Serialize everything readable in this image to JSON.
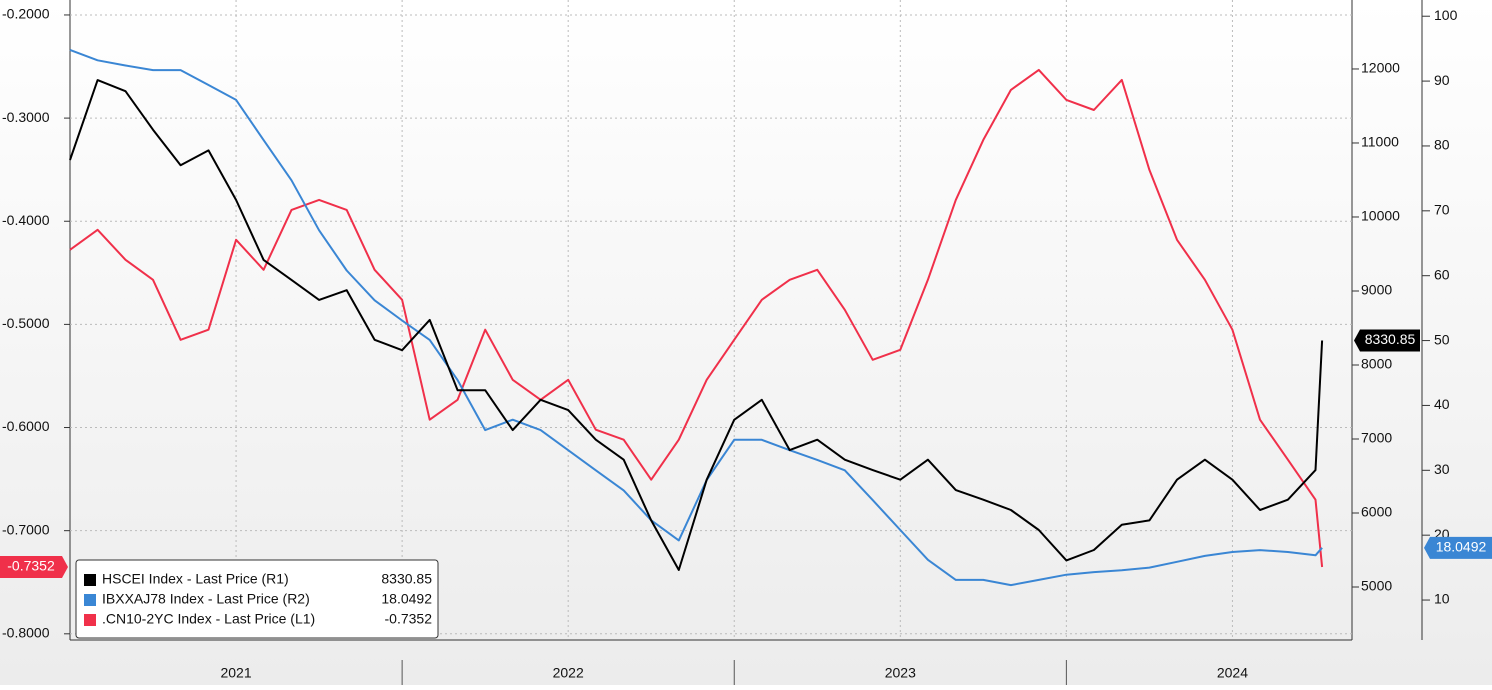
{
  "chart_data": {
    "type": "line",
    "x": [
      2021.0,
      2021.083,
      2021.167,
      2021.25,
      2021.333,
      2021.417,
      2021.5,
      2021.583,
      2021.667,
      2021.75,
      2021.833,
      2021.917,
      2022.0,
      2022.083,
      2022.167,
      2022.25,
      2022.333,
      2022.417,
      2022.5,
      2022.583,
      2022.667,
      2022.75,
      2022.833,
      2022.917,
      2023.0,
      2023.083,
      2023.167,
      2023.25,
      2023.333,
      2023.417,
      2023.5,
      2023.583,
      2023.667,
      2023.75,
      2023.833,
      2023.917,
      2024.0,
      2024.083,
      2024.167,
      2024.25,
      2024.333,
      2024.417,
      2024.5,
      2024.583,
      2024.667,
      2024.75,
      2024.77
    ],
    "xlim": [
      2021.0,
      2024.86
    ],
    "xticks": [
      {
        "value": 2021.5,
        "label": "2021"
      },
      {
        "value": 2022.5,
        "label": "2022"
      },
      {
        "value": 2023.5,
        "label": "2023"
      },
      {
        "value": 2024.5,
        "label": "2024"
      }
    ],
    "ylim": [
      -0.806,
      -0.1855
    ],
    "yticks": [
      {
        "value": -0.2,
        "label": "-0.2000"
      },
      {
        "value": -0.3,
        "label": "-0.3000"
      },
      {
        "value": -0.4,
        "label": "-0.4000"
      },
      {
        "value": -0.5,
        "label": "-0.5000"
      },
      {
        "value": -0.6,
        "label": "-0.6000"
      },
      {
        "value": -0.7,
        "label": "-0.7000"
      },
      {
        "value": -0.8,
        "label": "-0.8000"
      }
    ],
    "y2lim": [
      4284,
      12932
    ],
    "y2ticks": [
      5000,
      6000,
      7000,
      8000,
      9000,
      10000,
      11000,
      12000
    ],
    "y3lim": [
      3.84,
      102.5
    ],
    "y3ticks": [
      10,
      20,
      30,
      40,
      50,
      60,
      70,
      80,
      90,
      100
    ],
    "grid": true,
    "legend": "lower left",
    "series": [
      {
        "name": "HSCEI Index - Last Price (R1)",
        "color": "#000000",
        "axis": "y2",
        "values": [
          10770,
          11850,
          11700,
          11180,
          10700,
          10900,
          10230,
          9420,
          9150,
          8880,
          9010,
          8340,
          8200,
          8610,
          7660,
          7660,
          7120,
          7530,
          7390,
          6990,
          6720,
          5900,
          5230,
          6450,
          7260,
          7530,
          6850,
          6990,
          6720,
          6580,
          6450,
          6720,
          6310,
          6180,
          6040,
          5770,
          5360,
          5500,
          5840,
          5900,
          6450,
          6720,
          6450,
          6040,
          6180,
          6580,
          8330.85
        ]
      },
      {
        "name": "IBXXAJ78 Index - Last Price (R2)",
        "color": "#3a86d4",
        "axis": "y3",
        "values": [
          94.8,
          93.2,
          92.4,
          91.7,
          91.7,
          89.4,
          87.1,
          80.9,
          74.7,
          67.0,
          60.8,
          56.2,
          53.1,
          50.1,
          43.9,
          36.2,
          37.8,
          36.2,
          33.1,
          30.0,
          26.9,
          22.3,
          19.2,
          28.5,
          34.7,
          34.7,
          33.1,
          31.6,
          30.0,
          25.4,
          20.8,
          16.2,
          13.1,
          13.1,
          12.3,
          13.1,
          13.9,
          14.3,
          14.6,
          15.0,
          15.9,
          16.8,
          17.4,
          17.7,
          17.4,
          16.9,
          18.0492
        ]
      },
      {
        "name": ".CN10-2YC Index - Last Price (L1)",
        "color": "#f0304a",
        "axis": "y",
        "values": [
          -0.4277,
          -0.4083,
          -0.4374,
          -0.4568,
          -0.5149,
          -0.5052,
          -0.418,
          -0.4471,
          -0.389,
          -0.3793,
          -0.389,
          -0.4471,
          -0.4762,
          -0.5924,
          -0.5731,
          -0.5052,
          -0.5537,
          -0.5731,
          -0.5537,
          -0.6021,
          -0.6118,
          -0.6506,
          -0.6118,
          -0.5537,
          -0.5149,
          -0.4762,
          -0.4568,
          -0.4471,
          -0.4859,
          -0.5343,
          -0.5246,
          -0.4568,
          -0.3793,
          -0.3211,
          -0.2727,
          -0.2533,
          -0.2824,
          -0.2921,
          -0.263,
          -0.3502,
          -0.418,
          -0.4568,
          -0.5052,
          -0.5924,
          -0.6312,
          -0.67,
          -0.7352
        ]
      }
    ]
  }
}
